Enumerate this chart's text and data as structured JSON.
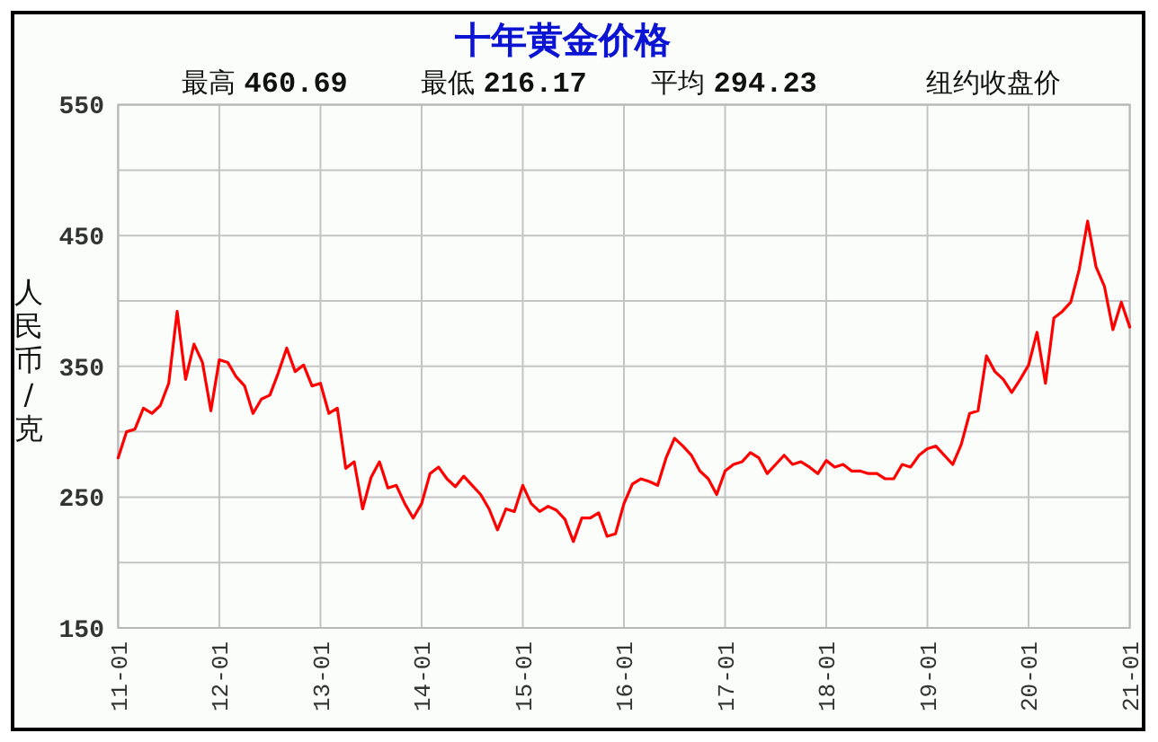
{
  "chart_data": {
    "type": "line",
    "title": "十年黄金价格",
    "ylabel": "人民币/克",
    "annotations": [
      "最高 460.69",
      "最低 216.17",
      "平均 294.23",
      "纽约收盘价"
    ],
    "categories": [
      "11-01",
      null,
      null,
      null,
      null,
      null,
      null,
      null,
      null,
      null,
      null,
      null,
      "12-01",
      null,
      null,
      null,
      null,
      null,
      null,
      null,
      null,
      null,
      null,
      null,
      "13-01",
      null,
      null,
      null,
      null,
      null,
      null,
      null,
      null,
      null,
      null,
      null,
      "14-01",
      null,
      null,
      null,
      null,
      null,
      null,
      null,
      null,
      null,
      null,
      null,
      "15-01",
      null,
      null,
      null,
      null,
      null,
      null,
      null,
      null,
      null,
      null,
      null,
      "16-01",
      null,
      null,
      null,
      null,
      null,
      null,
      null,
      null,
      null,
      null,
      null,
      "17-01",
      null,
      null,
      null,
      null,
      null,
      null,
      null,
      null,
      null,
      null,
      null,
      "18-01",
      null,
      null,
      null,
      null,
      null,
      null,
      null,
      null,
      null,
      null,
      null,
      "19-01",
      null,
      null,
      null,
      null,
      null,
      null,
      null,
      null,
      null,
      null,
      null,
      "20-01",
      null,
      null,
      null,
      null,
      null,
      null,
      null,
      null,
      null,
      null,
      null,
      "21-01"
    ],
    "values": [
      280,
      300,
      302,
      318,
      314,
      320,
      337,
      392,
      340,
      367,
      353,
      316,
      355,
      353,
      342,
      335,
      314,
      325,
      328,
      345,
      364,
      346,
      351,
      335,
      337,
      314,
      318,
      272,
      277,
      241,
      265,
      277,
      257,
      259,
      245,
      234,
      245,
      268,
      273,
      264,
      258,
      266,
      259,
      252,
      241,
      225,
      241,
      239,
      259,
      245,
      239,
      243,
      240,
      233,
      216,
      234,
      234,
      238,
      220,
      222,
      245,
      260,
      264,
      262,
      259,
      280,
      295,
      289,
      282,
      270,
      264,
      252,
      270,
      275,
      277,
      284,
      280,
      268,
      275,
      282,
      275,
      277,
      273,
      268,
      278,
      273,
      275,
      270,
      270,
      268,
      268,
      264,
      264,
      275,
      273,
      282,
      287,
      289,
      282,
      275,
      290,
      314,
      316,
      358,
      346,
      340,
      330,
      340,
      351,
      376,
      337,
      387,
      392,
      399,
      424,
      461,
      426,
      411,
      378,
      399,
      380
    ],
    "color": "#ff0000",
    "ylim": [
      150,
      550
    ],
    "yticks": [
      150,
      {
        "value": 200,
        "label": null
      },
      250,
      {
        "value": 300,
        "label": null
      },
      350,
      {
        "value": 400,
        "label": null
      },
      450,
      {
        "value": 500,
        "label": null
      },
      550
    ],
    "grid": true
  }
}
